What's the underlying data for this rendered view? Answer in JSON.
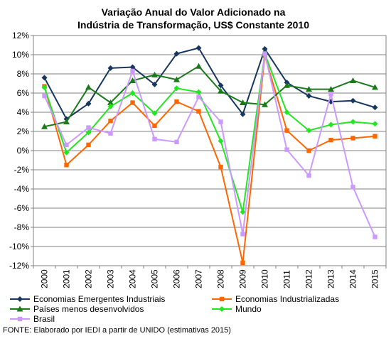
{
  "chart_data": {
    "type": "line",
    "title_lines": [
      "Variação Anual do Valor Adicionado na",
      "Indústria de Transformação, US$ Constante 2010"
    ],
    "x": [
      "2000",
      "2001",
      "2002",
      "2003",
      "2004",
      "2005",
      "2006",
      "2007",
      "2008",
      "2009",
      "2010",
      "2011",
      "2012",
      "2013",
      "2014",
      "2015"
    ],
    "y_ticks": [
      "12%",
      "10%",
      "8%",
      "6%",
      "4%",
      "2%",
      "0%",
      "-2%",
      "-4%",
      "-6%",
      "-8%",
      "-10%",
      "-12%"
    ],
    "ylim": [
      -12,
      12
    ],
    "grid": true,
    "legend_placement": "bottom",
    "series": [
      {
        "name": "Economias Emergentes Industriais",
        "color": "#17375e",
        "marker": "diamond",
        "values": [
          7.6,
          3.3,
          4.9,
          8.6,
          8.7,
          6.9,
          10.1,
          10.7,
          6.8,
          3.8,
          10.6,
          7.1,
          5.7,
          5.1,
          5.2,
          4.5
        ]
      },
      {
        "name": "Economias Industrializadas",
        "color": "#ff6600",
        "marker": "square",
        "values": [
          6.7,
          -1.5,
          0.6,
          3.1,
          5.0,
          2.6,
          5.1,
          4.1,
          -1.7,
          -11.7,
          9.9,
          2.1,
          0.0,
          1.1,
          1.3,
          1.5
        ]
      },
      {
        "name": "Países menos desenvolvidos",
        "color": "#1a7a1a",
        "marker": "triangle",
        "values": [
          2.5,
          3.0,
          6.6,
          5.0,
          7.3,
          7.9,
          7.4,
          8.8,
          6.2,
          5.0,
          4.8,
          6.8,
          6.4,
          6.4,
          7.3,
          6.6
        ]
      },
      {
        "name": "Mundo",
        "color": "#22e622",
        "marker": "diamond",
        "values": [
          6.6,
          -0.2,
          1.9,
          4.6,
          6.0,
          3.9,
          6.5,
          6.1,
          1.0,
          -6.4,
          10.1,
          4.0,
          2.1,
          2.7,
          3.0,
          2.8
        ]
      },
      {
        "name": "Brasil",
        "color": "#cc99ff",
        "marker": "square",
        "values": [
          5.7,
          0.6,
          2.4,
          1.8,
          8.3,
          1.2,
          0.9,
          5.6,
          3.0,
          -8.7,
          10.1,
          0.1,
          -2.6,
          5.9,
          -3.8,
          -9.0
        ]
      }
    ],
    "source": "FONTE: Elaborado por IEDI a partir de UNIDO (estimativas 2015)"
  }
}
